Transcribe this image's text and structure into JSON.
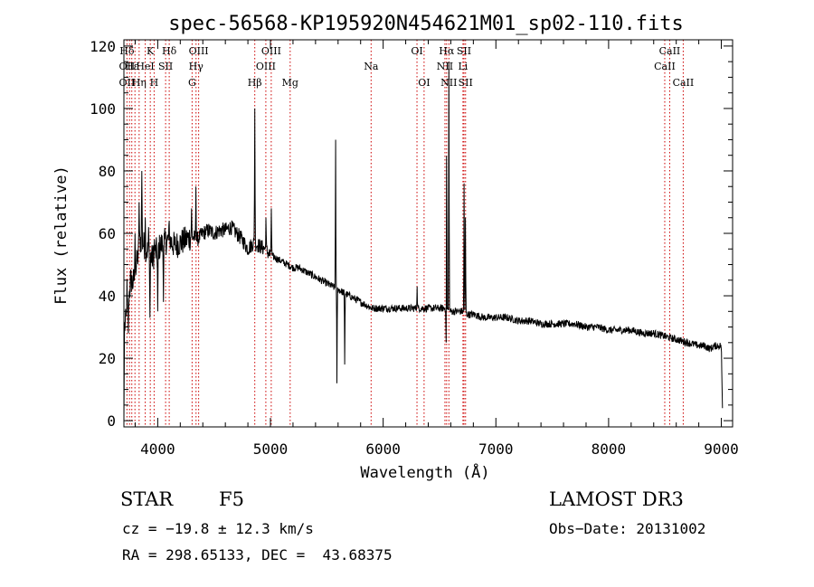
{
  "chart_data": {
    "type": "line",
    "title": "spec-56568-KP195920N454621M01_sp02-110.fits",
    "xlabel": "Wavelength (Å)",
    "ylabel": "Flux (relative)",
    "xlim": [
      3700,
      9100
    ],
    "ylim": [
      -2,
      122
    ],
    "x_ticks": [
      4000,
      5000,
      6000,
      7000,
      8000,
      9000
    ],
    "y_ticks": [
      0,
      20,
      40,
      60,
      80,
      100,
      120
    ],
    "grid": false,
    "series": [
      {
        "color": "#000000",
        "continuum": [
          [
            3700,
            0
          ],
          [
            3705,
            30
          ],
          [
            3720,
            32
          ],
          [
            3740,
            38
          ],
          [
            3760,
            45
          ],
          [
            3780,
            44
          ],
          [
            3800,
            47
          ],
          [
            3820,
            52
          ],
          [
            3850,
            58
          ],
          [
            3900,
            55
          ],
          [
            3950,
            52
          ],
          [
            4000,
            55
          ],
          [
            4050,
            57
          ],
          [
            4100,
            58
          ],
          [
            4150,
            56
          ],
          [
            4200,
            57
          ],
          [
            4250,
            58
          ],
          [
            4300,
            59
          ],
          [
            4350,
            58
          ],
          [
            4400,
            60
          ],
          [
            4450,
            61
          ],
          [
            4500,
            60
          ],
          [
            4550,
            61
          ],
          [
            4600,
            61
          ],
          [
            4650,
            62
          ],
          [
            4700,
            60
          ],
          [
            4750,
            58
          ],
          [
            4800,
            55
          ],
          [
            4850,
            57
          ],
          [
            4900,
            56
          ],
          [
            4950,
            55
          ],
          [
            5000,
            53
          ],
          [
            5050,
            52
          ],
          [
            5100,
            51
          ],
          [
            5150,
            50
          ],
          [
            5200,
            49
          ],
          [
            5250,
            49
          ],
          [
            5300,
            48
          ],
          [
            5350,
            47
          ],
          [
            5400,
            46
          ],
          [
            5450,
            45
          ],
          [
            5500,
            44
          ],
          [
            5550,
            43
          ],
          [
            5600,
            42
          ],
          [
            5650,
            41
          ],
          [
            5700,
            40
          ],
          [
            5750,
            39
          ],
          [
            5800,
            38
          ],
          [
            5850,
            37
          ],
          [
            5900,
            36
          ],
          [
            5950,
            36
          ],
          [
            6000,
            36
          ],
          [
            6100,
            36
          ],
          [
            6200,
            36
          ],
          [
            6300,
            36
          ],
          [
            6400,
            36
          ],
          [
            6500,
            36
          ],
          [
            6550,
            36
          ],
          [
            6600,
            35
          ],
          [
            6650,
            35
          ],
          [
            6700,
            35
          ],
          [
            6750,
            34
          ],
          [
            6800,
            34
          ],
          [
            6900,
            33
          ],
          [
            7000,
            33
          ],
          [
            7100,
            33
          ],
          [
            7200,
            32
          ],
          [
            7300,
            32
          ],
          [
            7400,
            31
          ],
          [
            7500,
            31
          ],
          [
            7600,
            31
          ],
          [
            7700,
            31
          ],
          [
            7800,
            30
          ],
          [
            7900,
            30
          ],
          [
            8000,
            29
          ],
          [
            8100,
            29
          ],
          [
            8200,
            29
          ],
          [
            8300,
            28
          ],
          [
            8400,
            28
          ],
          [
            8500,
            27
          ],
          [
            8600,
            26
          ],
          [
            8700,
            25
          ],
          [
            8800,
            24
          ],
          [
            8850,
            24
          ],
          [
            8900,
            23
          ],
          [
            8950,
            24
          ],
          [
            9000,
            24
          ],
          [
            9010,
            4
          ]
        ],
        "spikes": [
          [
            3727,
            45
          ],
          [
            3800,
            60
          ],
          [
            3835,
            70
          ],
          [
            3860,
            80
          ],
          [
            3890,
            65
          ],
          [
            3920,
            62
          ],
          [
            3970,
            58
          ],
          [
            4102,
            64
          ],
          [
            4300,
            68
          ],
          [
            4340,
            75
          ],
          [
            4861,
            100
          ],
          [
            4959,
            65
          ],
          [
            5007,
            68
          ],
          [
            5577,
            90
          ],
          [
            6300,
            43
          ],
          [
            6563,
            117
          ],
          [
            6583,
            115
          ],
          [
            6717,
            76
          ],
          [
            6731,
            65
          ]
        ],
        "dips": [
          [
            3740,
            28
          ],
          [
            3930,
            33
          ],
          [
            4000,
            35
          ],
          [
            4050,
            38
          ],
          [
            5590,
            12
          ],
          [
            5660,
            18
          ],
          [
            6560,
            25
          ]
        ]
      }
    ],
    "annotations": [
      {
        "label": "Hδ",
        "wavelength": 3727,
        "row": 0
      },
      {
        "label": "OII",
        "wavelength": 3727,
        "row": 1
      },
      {
        "label": "OII",
        "wavelength": 3727,
        "row": 2
      },
      {
        "label": "Hε",
        "wavelength": 3770,
        "row": 1
      },
      {
        "label": "Hη",
        "wavelength": 3835,
        "row": 2
      },
      {
        "label": "K",
        "wavelength": 3934,
        "row": 0
      },
      {
        "label": "HeI",
        "wavelength": 3889,
        "row": 1
      },
      {
        "label": "H",
        "wavelength": 3968,
        "row": 2
      },
      {
        "label": "Hδ",
        "wavelength": 4102,
        "row": 0
      },
      {
        "label": "SII",
        "wavelength": 4070,
        "row": 1
      },
      {
        "label": "OIII",
        "wavelength": 4363,
        "row": 0
      },
      {
        "label": "Hγ",
        "wavelength": 4340,
        "row": 1
      },
      {
        "label": "G",
        "wavelength": 4305,
        "row": 2
      },
      {
        "label": "Hβ",
        "wavelength": 4861,
        "row": 2
      },
      {
        "label": "OIII",
        "wavelength": 5007,
        "row": 0
      },
      {
        "label": "OIII",
        "wavelength": 4959,
        "row": 1
      },
      {
        "label": "Mg",
        "wavelength": 5175,
        "row": 2
      },
      {
        "label": "Na",
        "wavelength": 5893,
        "row": 1
      },
      {
        "label": "OI",
        "wavelength": 6300,
        "row": 0
      },
      {
        "label": "OI",
        "wavelength": 6363,
        "row": 2
      },
      {
        "label": "Hα",
        "wavelength": 6563,
        "row": 0
      },
      {
        "label": "NII",
        "wavelength": 6548,
        "row": 1
      },
      {
        "label": "NII",
        "wavelength": 6583,
        "row": 2
      },
      {
        "label": "SII",
        "wavelength": 6717,
        "row": 0
      },
      {
        "label": "Li",
        "wavelength": 6708,
        "row": 1
      },
      {
        "label": "SII",
        "wavelength": 6731,
        "row": 2
      },
      {
        "label": "CaII",
        "wavelength": 8542,
        "row": 0
      },
      {
        "label": "CaII",
        "wavelength": 8498,
        "row": 1
      },
      {
        "label": "CaII",
        "wavelength": 8662,
        "row": 2
      }
    ],
    "line_marker_wavelengths": [
      3727,
      3750,
      3770,
      3798,
      3835,
      3889,
      3934,
      3968,
      4070,
      4102,
      4305,
      4340,
      4363,
      4861,
      4959,
      5007,
      5175,
      5893,
      6300,
      6363,
      6548,
      6563,
      6583,
      6708,
      6717,
      6731,
      8498,
      8542,
      8662
    ],
    "line_marker_color": "#cc0000"
  },
  "info": {
    "object_type": "STAR",
    "subclass": "F5",
    "survey": "LAMOST DR3",
    "cz_line": "cz = −19.8 ± 12.3 km/s",
    "obs_date_line": "Obs−Date: 20131002",
    "coords_line": "RA = 298.65133, DEC =  43.68375"
  }
}
